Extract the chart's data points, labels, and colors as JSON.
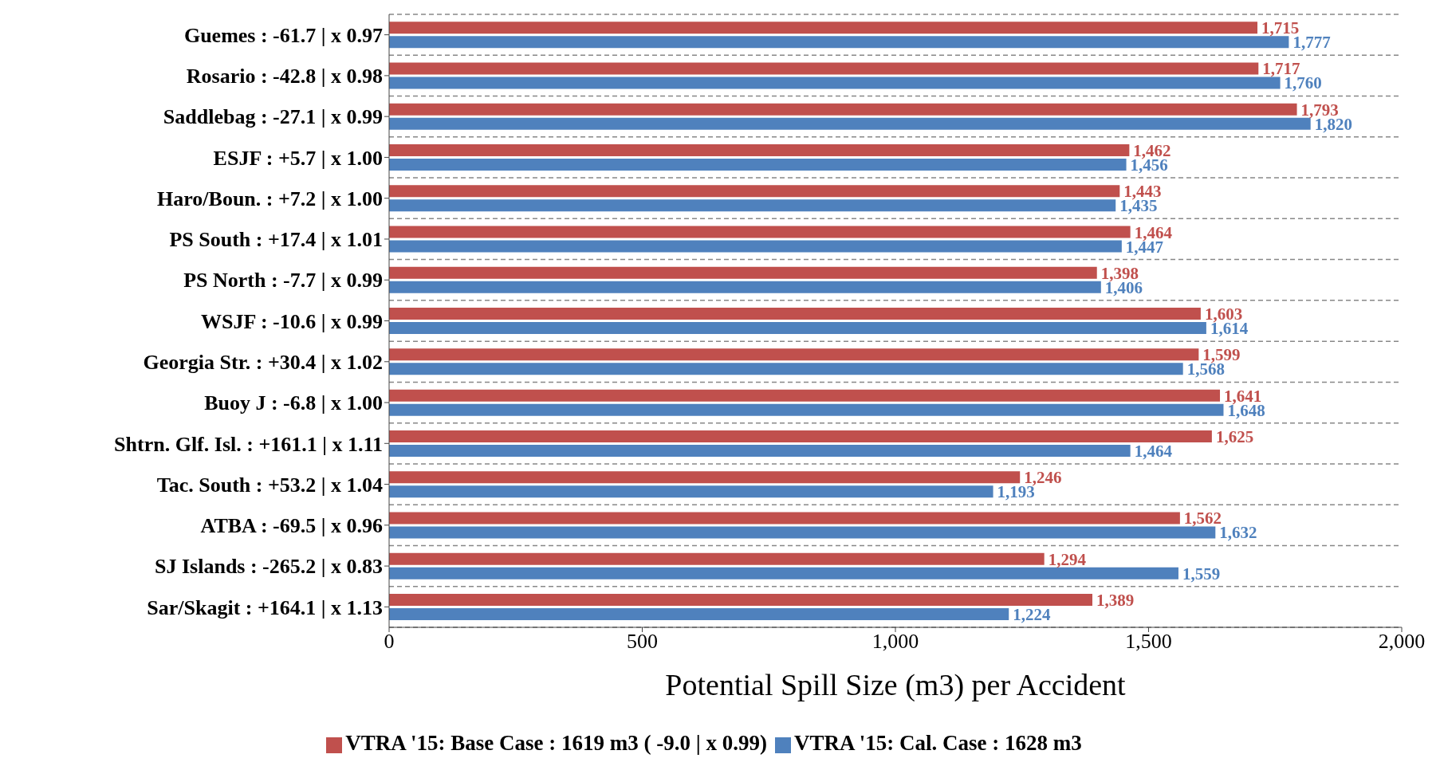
{
  "chart_data": {
    "type": "bar",
    "orientation": "horizontal",
    "xlabel": "Potential Spill Size (m3) per Accident",
    "categories": [
      "Guemes : -61.7 |  x 0.97",
      "Rosario : -42.8 |  x 0.98",
      "Saddlebag : -27.1 |  x 0.99",
      "ESJF : +5.7 |  x 1.00",
      "Haro/Boun. : +7.2 |  x 1.00",
      "PS South : +17.4 |  x 1.01",
      "PS North : -7.7 |  x 0.99",
      "WSJF : -10.6 |  x 0.99",
      "Georgia Str. : +30.4 |  x 1.02",
      "Buoy J : -6.8 |  x 1.00",
      "Shtrn. Glf. Isl. : +161.1 |  x 1.11",
      "Tac. South : +53.2 |  x 1.04",
      "ATBA : -69.5 |  x 0.96",
      "SJ Islands : -265.2 |  x 0.83",
      "Sar/Skagit : +164.1 |  x 1.13"
    ],
    "series": [
      {
        "name": "VTRA '15: Base Case : 1619 m3 ( -9.0 |  x 0.99)",
        "color": "#c0504d",
        "values": [
          1715,
          1717,
          1793,
          1462,
          1443,
          1464,
          1398,
          1603,
          1599,
          1641,
          1625,
          1246,
          1562,
          1294,
          1389
        ],
        "value_labels": [
          "1,715",
          "1,717",
          "1,793",
          "1,462",
          "1,443",
          "1,464",
          "1,398",
          "1,603",
          "1,599",
          "1,641",
          "1,625",
          "1,246",
          "1,562",
          "1,294",
          "1,389"
        ]
      },
      {
        "name": "VTRA '15: Cal. Case : 1628 m3",
        "color": "#4f81bd",
        "values": [
          1777,
          1760,
          1820,
          1456,
          1435,
          1447,
          1406,
          1614,
          1568,
          1648,
          1464,
          1193,
          1632,
          1559,
          1224
        ],
        "value_labels": [
          "1,777",
          "1,760",
          "1,820",
          "1,456",
          "1,435",
          "1,447",
          "1,406",
          "1,614",
          "1,568",
          "1,648",
          "1,464",
          "1,193",
          "1,632",
          "1,559",
          "1,224"
        ]
      }
    ],
    "xlim": [
      0,
      2000
    ],
    "xticks": [
      0,
      500,
      {
        "value": 1000,
        "label": "1,000"
      },
      {
        "value": 1500,
        "label": "1,500"
      },
      {
        "value": 2000,
        "label": "2,000"
      }
    ],
    "grid": "y",
    "legend": "bottom"
  }
}
